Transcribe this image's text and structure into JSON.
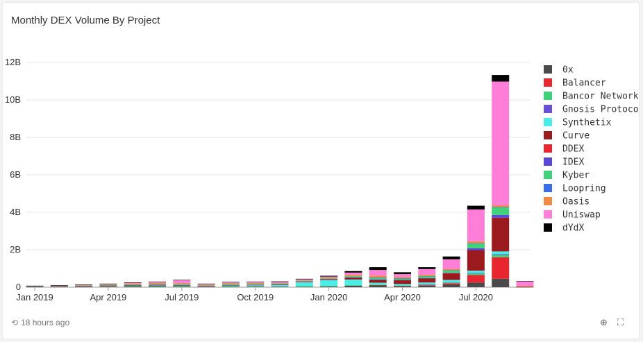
{
  "card": {
    "title": "Monthly DEX Volume By Project",
    "updated": "18 hours ago"
  },
  "colors": {
    "0x": "#4a4a4a",
    "Balancer": "#e8262f",
    "Bancor Network": "#3fd27a",
    "Gnosis Protocol": "#6a4fd8",
    "Synthetix": "#4aeee6",
    "Curve": "#9a1a1e",
    "DDEX": "#e8262f",
    "IDEX": "#5a48d8",
    "Kyber": "#3fd27a",
    "Loopring": "#3a6ee8",
    "Oasis": "#f08a45",
    "Uniswap": "#ff7fd8",
    "dYdX": "#000000"
  },
  "chart_data": {
    "type": "bar",
    "stacked": true,
    "title": "Monthly DEX Volume By Project",
    "y_unit": "B",
    "ylim": [
      0,
      12
    ],
    "yticks": [
      0,
      2,
      4,
      6,
      8,
      10,
      12
    ],
    "ytick_labels": [
      "0",
      "2B",
      "4B",
      "6B",
      "8B",
      "10B",
      "12B"
    ],
    "categories": [
      "Jan 2019",
      "Feb 2019",
      "Mar 2019",
      "Apr 2019",
      "May 2019",
      "Jun 2019",
      "Jul 2019",
      "Aug 2019",
      "Sep 2019",
      "Oct 2019",
      "Nov 2019",
      "Dec 2019",
      "Jan 2020",
      "Feb 2020",
      "Mar 2020",
      "Apr 2020",
      "May 2020",
      "Jun 2020",
      "Jul 2020",
      "Aug 2020",
      "Sep 2020"
    ],
    "xtick_labels": [
      {
        "index": 0,
        "label": "Jan 2019"
      },
      {
        "index": 3,
        "label": "Apr 2019"
      },
      {
        "index": 6,
        "label": "Jul 2019"
      },
      {
        "index": 9,
        "label": "Oct 2019"
      },
      {
        "index": 12,
        "label": "Jan 2020"
      },
      {
        "index": 15,
        "label": "Apr 2020"
      },
      {
        "index": 18,
        "label": "Jul 2020"
      }
    ],
    "legend_position": "right",
    "grid": true,
    "series": [
      {
        "name": "0x",
        "values": [
          0.02,
          0.02,
          0.02,
          0.03,
          0.04,
          0.04,
          0.03,
          0.02,
          0.03,
          0.03,
          0.03,
          0.03,
          0.04,
          0.08,
          0.1,
          0.06,
          0.08,
          0.15,
          0.25,
          0.45,
          0.01
        ]
      },
      {
        "name": "Balancer",
        "values": [
          0,
          0,
          0,
          0,
          0,
          0,
          0,
          0,
          0,
          0,
          0,
          0,
          0,
          0,
          0.01,
          0.01,
          0.03,
          0.06,
          0.4,
          1.15,
          0.01
        ]
      },
      {
        "name": "Bancor Network",
        "values": [
          0.01,
          0.01,
          0.02,
          0.03,
          0.03,
          0.04,
          0.04,
          0.02,
          0.03,
          0.03,
          0.02,
          0.02,
          0.02,
          0.03,
          0.03,
          0.02,
          0.03,
          0.04,
          0.08,
          0.12,
          0
        ]
      },
      {
        "name": "Gnosis Protocol",
        "values": [
          0,
          0,
          0,
          0,
          0,
          0,
          0,
          0,
          0,
          0,
          0,
          0,
          0,
          0,
          0,
          0,
          0.01,
          0.02,
          0.03,
          0.04,
          0
        ]
      },
      {
        "name": "Synthetix",
        "values": [
          0,
          0,
          0,
          0,
          0,
          0,
          0,
          0,
          0.03,
          0.05,
          0.08,
          0.22,
          0.32,
          0.3,
          0.1,
          0.08,
          0.1,
          0.12,
          0.12,
          0.15,
          0
        ]
      },
      {
        "name": "Curve",
        "values": [
          0,
          0,
          0,
          0,
          0,
          0,
          0,
          0,
          0,
          0,
          0.01,
          0.02,
          0.04,
          0.1,
          0.15,
          0.2,
          0.22,
          0.35,
          1.1,
          1.8,
          0.02
        ]
      },
      {
        "name": "DDEX",
        "values": [
          0.01,
          0.01,
          0.01,
          0.01,
          0.02,
          0.02,
          0.02,
          0.01,
          0.01,
          0.01,
          0.01,
          0.01,
          0.01,
          0.01,
          0.01,
          0.01,
          0.01,
          0.01,
          0,
          0,
          0
        ]
      },
      {
        "name": "IDEX",
        "values": [
          0.01,
          0.02,
          0.02,
          0.02,
          0.02,
          0.03,
          0.03,
          0.02,
          0.02,
          0.02,
          0.01,
          0.01,
          0.01,
          0.01,
          0.01,
          0.01,
          0.01,
          0.02,
          0.1,
          0.15,
          0
        ]
      },
      {
        "name": "Kyber",
        "values": [
          0.01,
          0.01,
          0.02,
          0.03,
          0.04,
          0.04,
          0.05,
          0.03,
          0.05,
          0.04,
          0.03,
          0.03,
          0.04,
          0.06,
          0.1,
          0.08,
          0.1,
          0.12,
          0.25,
          0.4,
          0.01
        ]
      },
      {
        "name": "Loopring",
        "values": [
          0,
          0,
          0,
          0,
          0,
          0,
          0,
          0,
          0,
          0,
          0,
          0,
          0,
          0,
          0.01,
          0.01,
          0.01,
          0.02,
          0.02,
          0.02,
          0
        ]
      },
      {
        "name": "Oasis",
        "values": [
          0.01,
          0.02,
          0.03,
          0.04,
          0.05,
          0.06,
          0.05,
          0.04,
          0.05,
          0.05,
          0.04,
          0.04,
          0.04,
          0.07,
          0.1,
          0.07,
          0.07,
          0.08,
          0.1,
          0.1,
          0.01
        ]
      },
      {
        "name": "Uniswap",
        "values": [
          0,
          0.01,
          0.02,
          0.02,
          0.04,
          0.05,
          0.15,
          0.03,
          0.04,
          0.05,
          0.05,
          0.04,
          0.05,
          0.12,
          0.3,
          0.15,
          0.3,
          0.5,
          1.7,
          6.6,
          0.25
        ]
      },
      {
        "name": "dYdX",
        "values": [
          0.01,
          0.01,
          0.01,
          0.01,
          0.02,
          0.02,
          0.02,
          0.02,
          0.02,
          0.02,
          0.03,
          0.03,
          0.04,
          0.08,
          0.15,
          0.1,
          0.1,
          0.15,
          0.2,
          0.35,
          0.02
        ]
      }
    ]
  }
}
